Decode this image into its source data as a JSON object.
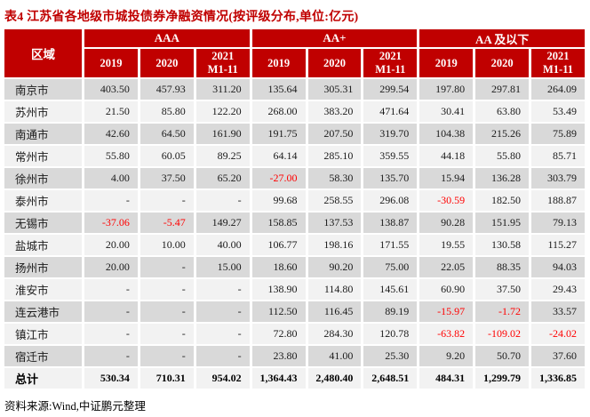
{
  "title": "表4  江苏省各地级市城投债券净融资情况(按评级分布,单位:亿元)",
  "source_note": "资料来源:Wind,中证鹏元整理",
  "colors": {
    "header_bg": "#C00000",
    "title_text": "#C00000",
    "header_text": "#FFFFFF",
    "row_shade_dark": "#D9D9D9",
    "row_shade_light": "#F2F2F2",
    "negative_value": "#FF0000"
  },
  "table": {
    "corner_header": "区域",
    "rating_groups": [
      "AAA",
      "AA+",
      "AA 及以下"
    ],
    "period_headers": [
      "2019",
      "2020",
      "2021\nM1-11"
    ],
    "rows": [
      {
        "region": "南京市",
        "values": [
          "403.50",
          "457.93",
          "311.20",
          "135.64",
          "305.31",
          "299.54",
          "197.80",
          "297.81",
          "264.09"
        ]
      },
      {
        "region": "苏州市",
        "values": [
          "21.50",
          "85.80",
          "122.20",
          "268.00",
          "383.20",
          "471.64",
          "30.41",
          "63.80",
          "53.49"
        ]
      },
      {
        "region": "南通市",
        "values": [
          "42.60",
          "64.50",
          "161.90",
          "191.75",
          "207.50",
          "319.70",
          "104.38",
          "215.26",
          "75.89"
        ]
      },
      {
        "region": "常州市",
        "values": [
          "55.80",
          "60.05",
          "89.25",
          "64.14",
          "285.10",
          "359.55",
          "44.18",
          "55.80",
          "85.71"
        ]
      },
      {
        "region": "徐州市",
        "values": [
          "4.00",
          "37.50",
          "65.20",
          "-27.00",
          "58.30",
          "135.70",
          "15.94",
          "136.28",
          "303.79"
        ]
      },
      {
        "region": "泰州市",
        "values": [
          "-",
          "-",
          "-",
          "99.68",
          "258.55",
          "296.08",
          "-30.59",
          "182.50",
          "188.87"
        ]
      },
      {
        "region": "无锡市",
        "values": [
          "-37.06",
          "-5.47",
          "149.27",
          "158.85",
          "137.53",
          "138.87",
          "90.28",
          "151.95",
          "79.13"
        ]
      },
      {
        "region": "盐城市",
        "values": [
          "20.00",
          "10.00",
          "40.00",
          "106.77",
          "198.16",
          "171.55",
          "19.55",
          "130.58",
          "115.27"
        ]
      },
      {
        "region": "扬州市",
        "values": [
          "20.00",
          "-",
          "15.00",
          "18.60",
          "90.20",
          "75.00",
          "22.05",
          "88.35",
          "94.03"
        ]
      },
      {
        "region": "淮安市",
        "values": [
          "-",
          "-",
          "-",
          "138.90",
          "114.80",
          "145.61",
          "60.90",
          "37.50",
          "29.43"
        ]
      },
      {
        "region": "连云港市",
        "values": [
          "-",
          "-",
          "-",
          "112.50",
          "116.45",
          "89.19",
          "-15.97",
          "-1.72",
          "33.57"
        ]
      },
      {
        "region": "镇江市",
        "values": [
          "-",
          "-",
          "-",
          "72.80",
          "284.30",
          "120.78",
          "-63.82",
          "-109.02",
          "-24.02"
        ]
      },
      {
        "region": "宿迁市",
        "values": [
          "-",
          "-",
          "-",
          "23.80",
          "41.00",
          "25.30",
          "9.20",
          "50.70",
          "37.60"
        ]
      },
      {
        "region": "总计",
        "values": [
          "530.34",
          "710.31",
          "954.02",
          "1,364.43",
          "2,480.40",
          "2,648.51",
          "484.31",
          "1,299.79",
          "1,336.85"
        ],
        "is_total": true
      }
    ]
  }
}
